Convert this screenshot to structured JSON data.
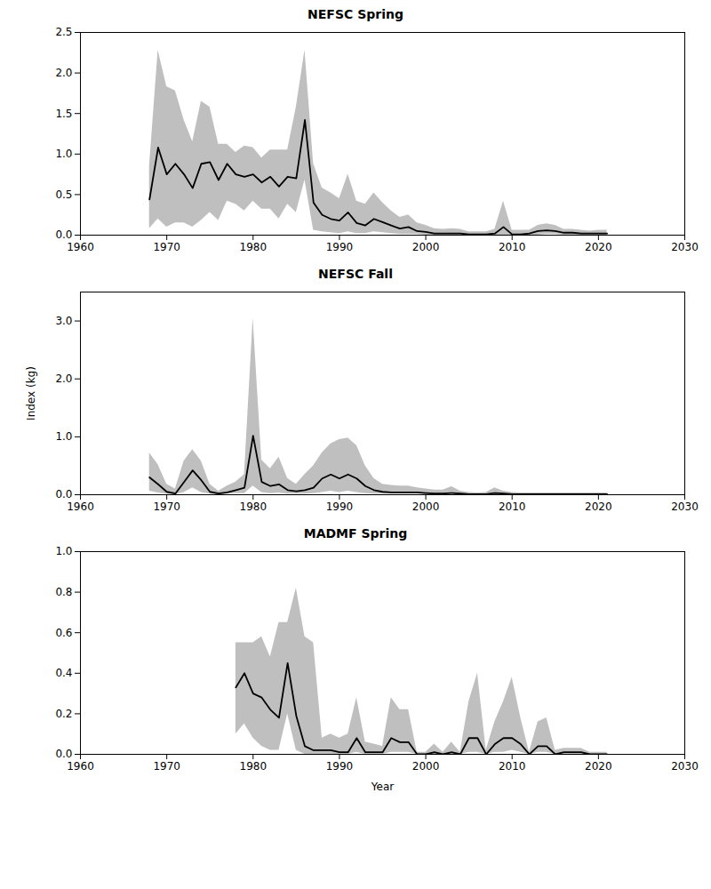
{
  "chart_data": [
    {
      "type": "line",
      "title": "NEFSC Spring",
      "color": "#000000",
      "grid": false,
      "xlim": [
        1960,
        2030
      ],
      "xticks": [
        1960,
        1970,
        1980,
        1990,
        2000,
        2010,
        2020,
        2030
      ],
      "ylim": [
        0,
        2.5
      ],
      "yticks": [
        {
          "value": 0,
          "label": "0.0"
        },
        0.5,
        {
          "value": 1,
          "label": "1.0"
        },
        1.5,
        {
          "value": 2,
          "label": "2.0"
        },
        2.5
      ],
      "x": [
        1968,
        1969,
        1970,
        1971,
        1972,
        1973,
        1974,
        1975,
        1976,
        1977,
        1978,
        1979,
        1980,
        1981,
        1982,
        1983,
        1984,
        1985,
        1986,
        1987,
        1988,
        1989,
        1990,
        1991,
        1992,
        1993,
        1994,
        1995,
        1996,
        1997,
        1998,
        1999,
        2000,
        2001,
        2002,
        2003,
        2004,
        2005,
        2006,
        2007,
        2008,
        2009,
        2010,
        2011,
        2012,
        2013,
        2014,
        2015,
        2016,
        2017,
        2018,
        2019,
        2020,
        2021
      ],
      "values": [
        0.44,
        1.08,
        0.75,
        0.88,
        0.75,
        0.58,
        0.88,
        0.9,
        0.68,
        0.88,
        0.75,
        0.72,
        0.75,
        0.65,
        0.72,
        0.6,
        0.72,
        0.7,
        1.42,
        0.4,
        0.25,
        0.2,
        0.18,
        0.28,
        0.15,
        0.12,
        0.2,
        0.16,
        0.12,
        0.08,
        0.1,
        0.05,
        0.04,
        0.02,
        0.02,
        0.02,
        0.02,
        0.01,
        0.01,
        0.01,
        0.02,
        0.1,
        0.01,
        0.01,
        0.02,
        0.05,
        0.06,
        0.05,
        0.03,
        0.03,
        0.02,
        0.02,
        0.02,
        0.02
      ],
      "upper": [
        0.85,
        2.28,
        1.83,
        1.78,
        1.42,
        1.15,
        1.65,
        1.58,
        1.12,
        1.12,
        1.02,
        1.1,
        1.08,
        0.95,
        1.05,
        1.05,
        1.05,
        1.58,
        2.28,
        0.88,
        0.58,
        0.52,
        0.45,
        0.75,
        0.42,
        0.38,
        0.52,
        0.4,
        0.3,
        0.22,
        0.25,
        0.15,
        0.12,
        0.08,
        0.07,
        0.08,
        0.07,
        0.04,
        0.04,
        0.04,
        0.07,
        0.42,
        0.06,
        0.06,
        0.06,
        0.12,
        0.14,
        0.12,
        0.07,
        0.07,
        0.06,
        0.05,
        0.06,
        0.06
      ],
      "lower": [
        0.08,
        0.2,
        0.1,
        0.15,
        0.15,
        0.1,
        0.18,
        0.28,
        0.18,
        0.42,
        0.38,
        0.3,
        0.42,
        0.32,
        0.32,
        0.2,
        0.38,
        0.28,
        0.68,
        0.06,
        0.04,
        0.03,
        0.02,
        0.04,
        0.02,
        0.02,
        0.04,
        0.03,
        0.02,
        0.01,
        0.01,
        0.01,
        0.0,
        0.0,
        0.0,
        0.0,
        0.0,
        0.0,
        0.0,
        0.0,
        0.0,
        0.0,
        0.0,
        0.0,
        0.0,
        0.0,
        0.01,
        0.01,
        0.0,
        0.0,
        0.0,
        0.0,
        0.0,
        0.0
      ]
    },
    {
      "type": "line",
      "title": "NEFSC Fall",
      "color": "#000000",
      "grid": false,
      "ylabel": "Index (kg)",
      "xlim": [
        1960,
        2030
      ],
      "xticks": [
        1960,
        1970,
        1980,
        1990,
        2000,
        2010,
        2020,
        2030
      ],
      "ylim": [
        0,
        3.5
      ],
      "yticks": [
        {
          "value": 0,
          "label": "0.0"
        },
        {
          "value": 1,
          "label": "1.0"
        },
        {
          "value": 2,
          "label": "2.0"
        },
        {
          "value": 3,
          "label": "3.0"
        }
      ],
      "x": [
        1968,
        1969,
        1970,
        1971,
        1972,
        1973,
        1974,
        1975,
        1976,
        1977,
        1978,
        1979,
        1980,
        1981,
        1982,
        1983,
        1984,
        1985,
        1986,
        1987,
        1988,
        1989,
        1990,
        1991,
        1992,
        1993,
        1994,
        1995,
        1996,
        1997,
        1998,
        1999,
        2000,
        2001,
        2002,
        2003,
        2004,
        2005,
        2006,
        2007,
        2008,
        2009,
        2010,
        2011,
        2012,
        2013,
        2014,
        2015,
        2016,
        2017,
        2018,
        2019,
        2020,
        2021
      ],
      "values": [
        0.3,
        0.18,
        0.05,
        0.02,
        0.22,
        0.42,
        0.25,
        0.05,
        0.02,
        0.04,
        0.08,
        0.12,
        1.02,
        0.22,
        0.15,
        0.18,
        0.08,
        0.06,
        0.08,
        0.12,
        0.28,
        0.35,
        0.28,
        0.35,
        0.28,
        0.15,
        0.08,
        0.05,
        0.04,
        0.04,
        0.04,
        0.04,
        0.03,
        0.02,
        0.02,
        0.03,
        0.02,
        0.01,
        0.01,
        0.01,
        0.03,
        0.02,
        0.01,
        0.01,
        0.01,
        0.01,
        0.01,
        0.01,
        0.01,
        0.01,
        0.01,
        0.01,
        0.01,
        0.01
      ],
      "upper": [
        0.72,
        0.52,
        0.18,
        0.1,
        0.58,
        0.78,
        0.58,
        0.18,
        0.06,
        0.15,
        0.22,
        0.35,
        3.05,
        0.6,
        0.45,
        0.65,
        0.28,
        0.18,
        0.35,
        0.5,
        0.72,
        0.88,
        0.95,
        0.98,
        0.85,
        0.5,
        0.28,
        0.18,
        0.16,
        0.15,
        0.15,
        0.12,
        0.1,
        0.08,
        0.08,
        0.14,
        0.06,
        0.04,
        0.03,
        0.04,
        0.12,
        0.06,
        0.04,
        0.03,
        0.03,
        0.03,
        0.03,
        0.03,
        0.03,
        0.03,
        0.03,
        0.03,
        0.03,
        0.03
      ],
      "lower": [
        0.06,
        0.03,
        0.01,
        0.0,
        0.04,
        0.12,
        0.04,
        0.01,
        0.0,
        0.01,
        0.02,
        0.02,
        0.15,
        0.04,
        0.02,
        0.03,
        0.01,
        0.01,
        0.01,
        0.02,
        0.04,
        0.06,
        0.04,
        0.06,
        0.04,
        0.02,
        0.01,
        0.01,
        0.01,
        0.01,
        0.01,
        0.01,
        0.0,
        0.0,
        0.0,
        0.01,
        0.0,
        0.0,
        0.0,
        0.0,
        0.01,
        0.0,
        0.0,
        0.0,
        0.0,
        0.0,
        0.0,
        0.0,
        0.0,
        0.0,
        0.0,
        0.0,
        0.0,
        0.0
      ]
    },
    {
      "type": "line",
      "title": "MADMF Spring",
      "color": "#000000",
      "grid": false,
      "xlabel": "Year",
      "xlim": [
        1960,
        2030
      ],
      "xticks": [
        1960,
        1970,
        1980,
        1990,
        2000,
        2010,
        2020,
        2030
      ],
      "ylim": [
        0,
        1.0
      ],
      "yticks": [
        {
          "value": 0,
          "label": "0.0"
        },
        0.2,
        0.4,
        0.6,
        0.8,
        {
          "value": 1,
          "label": "1.0"
        }
      ],
      "x": [
        1978,
        1979,
        1980,
        1981,
        1982,
        1983,
        1984,
        1985,
        1986,
        1987,
        1988,
        1989,
        1990,
        1991,
        1992,
        1993,
        1994,
        1995,
        1996,
        1997,
        1998,
        1999,
        2000,
        2001,
        2002,
        2003,
        2004,
        2005,
        2006,
        2007,
        2008,
        2009,
        2010,
        2011,
        2012,
        2013,
        2014,
        2015,
        2016,
        2017,
        2018,
        2019,
        2020,
        2021
      ],
      "values": [
        0.33,
        0.4,
        0.3,
        0.28,
        0.22,
        0.18,
        0.45,
        0.19,
        0.04,
        0.02,
        0.02,
        0.02,
        0.01,
        0.01,
        0.08,
        0.01,
        0.01,
        0.01,
        0.08,
        0.06,
        0.06,
        0.0,
        0.0,
        0.01,
        0.0,
        0.01,
        0.0,
        0.08,
        0.08,
        0.0,
        0.05,
        0.08,
        0.08,
        0.05,
        0.0,
        0.04,
        0.04,
        0.0,
        0.01,
        0.01,
        0.01,
        0.0,
        0.0,
        0.0
      ],
      "upper": [
        0.55,
        0.55,
        0.55,
        0.58,
        0.48,
        0.65,
        0.65,
        0.82,
        0.58,
        0.55,
        0.08,
        0.1,
        0.08,
        0.1,
        0.28,
        0.06,
        0.05,
        0.04,
        0.28,
        0.22,
        0.22,
        0.01,
        0.01,
        0.05,
        0.01,
        0.06,
        0.01,
        0.26,
        0.4,
        0.02,
        0.16,
        0.26,
        0.38,
        0.18,
        0.01,
        0.16,
        0.18,
        0.02,
        0.03,
        0.03,
        0.03,
        0.01,
        0.01,
        0.01
      ],
      "lower": [
        0.1,
        0.15,
        0.08,
        0.04,
        0.02,
        0.02,
        0.2,
        0.02,
        0.0,
        0.0,
        0.0,
        0.0,
        0.0,
        0.0,
        0.01,
        0.0,
        0.0,
        0.0,
        0.01,
        0.01,
        0.01,
        0.0,
        0.0,
        0.0,
        0.0,
        0.0,
        0.0,
        0.01,
        0.01,
        0.0,
        0.01,
        0.01,
        0.02,
        0.01,
        0.0,
        0.01,
        0.01,
        0.0,
        0.0,
        0.0,
        0.0,
        0.0,
        0.0,
        0.0
      ]
    }
  ]
}
